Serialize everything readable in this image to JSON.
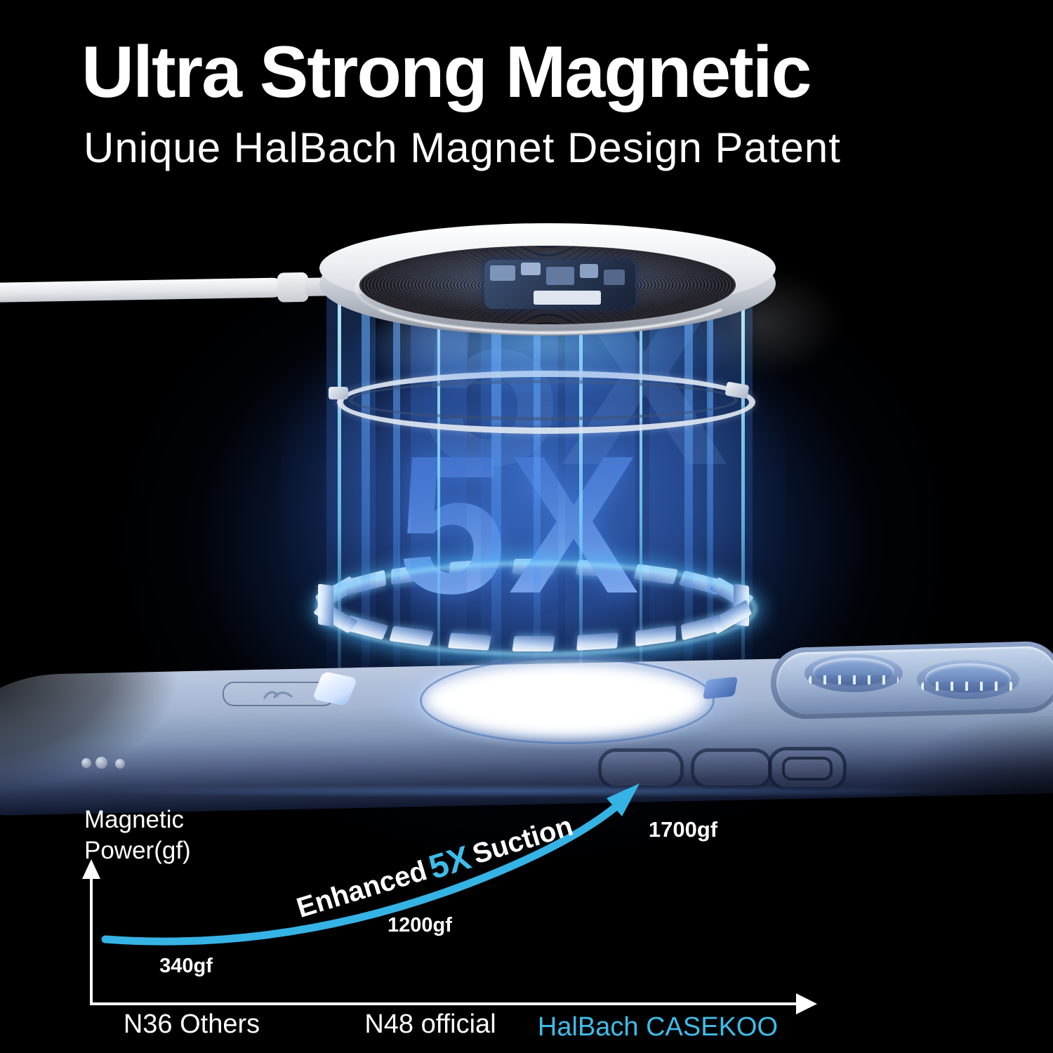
{
  "header": {
    "title": "Ultra Strong Magnetic",
    "subtitle": "Unique HalBach Magnet Design Patent"
  },
  "hero": {
    "multiplier": "5X"
  },
  "chart_data": {
    "type": "bar",
    "title": "",
    "xlabel": "",
    "ylabel": "Magnetic Power(gf)",
    "categories": [
      "N36 Others",
      "N48 official",
      "HalBach CASEKOO"
    ],
    "values": [
      340,
      1200,
      1700
    ],
    "value_labels": [
      "340gf",
      "1200gf",
      "1700gf"
    ],
    "bar_colors": [
      "#d9d9d9",
      "#d9d9d9",
      "#35b6e4"
    ],
    "category_colors": [
      "#ffffff",
      "#ffffff",
      "#3dbde9"
    ],
    "annotation": {
      "prefix": "Enhanced",
      "highlight": "5X",
      "suffix": "Suction"
    },
    "accent": "#35b3e4",
    "axis_color": "#ffffff",
    "ylim": [
      0,
      1800
    ],
    "grid": false,
    "legend": "none"
  }
}
